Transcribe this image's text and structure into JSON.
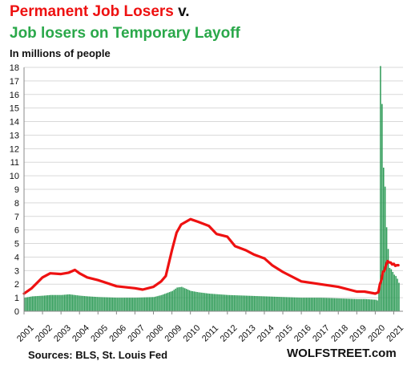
{
  "title": {
    "part1": "Permanent Job Losers",
    "part2": " v."
  },
  "subtitle": "Job losers on Temporary Layoff",
  "unit_label": "In millions of people",
  "source": "Sources: BLS, St. Louis Fed",
  "brand": "WOLFSTREET.com",
  "colors": {
    "permanent": "#ee1111",
    "temporary": "#2e9b57",
    "title_temporary": "#2aa84a"
  },
  "chart_data": {
    "type": "bar",
    "xlabel": "",
    "ylabel": "",
    "ylim": [
      0,
      18
    ],
    "yticks": [
      0,
      1,
      2,
      3,
      4,
      5,
      6,
      7,
      8,
      9,
      10,
      11,
      12,
      13,
      14,
      15,
      16,
      17,
      18
    ],
    "xlim": [
      2001,
      2021.5
    ],
    "xticks": [
      "2001",
      "2002",
      "2003",
      "2004",
      "2005",
      "2006",
      "2007",
      "2008",
      "2009",
      "2010",
      "2011",
      "2012",
      "2013",
      "2014",
      "2015",
      "2016",
      "2017",
      "2018",
      "2019",
      "2020",
      "2021"
    ],
    "grid": true,
    "series": [
      {
        "name": "Job losers on Temporary Layoff",
        "type": "bar",
        "frequency": "monthly",
        "x": [
          "2001-01",
          "2001-06",
          "2002-01",
          "2002-06",
          "2003-01",
          "2003-06",
          "2004-01",
          "2004-06",
          "2005-01",
          "2006-01",
          "2007-01",
          "2008-01",
          "2008-06",
          "2009-01",
          "2009-04",
          "2009-07",
          "2010-01",
          "2010-06",
          "2011-01",
          "2012-01",
          "2013-01",
          "2014-01",
          "2015-01",
          "2016-01",
          "2017-01",
          "2018-01",
          "2019-01",
          "2019-06",
          "2020-01",
          "2020-02",
          "2020-03",
          "2020-04",
          "2020-05",
          "2020-06",
          "2020-07",
          "2020-08",
          "2020-09",
          "2020-10",
          "2020-11",
          "2020-12",
          "2021-01",
          "2021-02",
          "2021-03",
          "2021-04"
        ],
        "values": [
          1.0,
          1.1,
          1.15,
          1.2,
          1.2,
          1.25,
          1.15,
          1.1,
          1.05,
          1.0,
          1.0,
          1.05,
          1.2,
          1.5,
          1.75,
          1.8,
          1.5,
          1.4,
          1.3,
          1.2,
          1.15,
          1.1,
          1.05,
          1.0,
          1.0,
          0.95,
          0.9,
          0.9,
          0.85,
          0.8,
          1.8,
          18.1,
          15.3,
          10.6,
          9.2,
          6.2,
          4.6,
          3.2,
          3.1,
          2.9,
          2.7,
          2.6,
          2.4,
          2.1
        ]
      },
      {
        "name": "Permanent Job Losers",
        "type": "line",
        "x": [
          "2001-01",
          "2001-06",
          "2002-01",
          "2002-06",
          "2003-01",
          "2003-06",
          "2003-10",
          "2004-01",
          "2004-06",
          "2005-01",
          "2006-01",
          "2007-01",
          "2007-06",
          "2008-01",
          "2008-06",
          "2008-09",
          "2009-01",
          "2009-04",
          "2009-07",
          "2010-01",
          "2010-06",
          "2011-01",
          "2011-06",
          "2012-01",
          "2012-06",
          "2013-01",
          "2013-06",
          "2014-01",
          "2014-06",
          "2015-01",
          "2016-01",
          "2017-01",
          "2018-01",
          "2019-01",
          "2019-06",
          "2020-01",
          "2020-03",
          "2020-04",
          "2020-05",
          "2020-06",
          "2020-07",
          "2020-08",
          "2020-09",
          "2020-10",
          "2020-11",
          "2020-12",
          "2021-01",
          "2021-02",
          "2021-03",
          "2021-04"
        ],
        "values": [
          1.3,
          1.7,
          2.5,
          2.8,
          2.75,
          2.85,
          3.05,
          2.8,
          2.5,
          2.3,
          1.85,
          1.7,
          1.6,
          1.8,
          2.2,
          2.6,
          4.5,
          5.8,
          6.4,
          6.8,
          6.6,
          6.3,
          5.7,
          5.5,
          4.8,
          4.5,
          4.2,
          3.9,
          3.4,
          2.9,
          2.2,
          2.0,
          1.8,
          1.45,
          1.45,
          1.3,
          1.4,
          2.0,
          2.3,
          2.9,
          3.0,
          3.4,
          3.7,
          3.6,
          3.6,
          3.45,
          3.5,
          3.35,
          3.4,
          3.4
        ]
      }
    ]
  }
}
